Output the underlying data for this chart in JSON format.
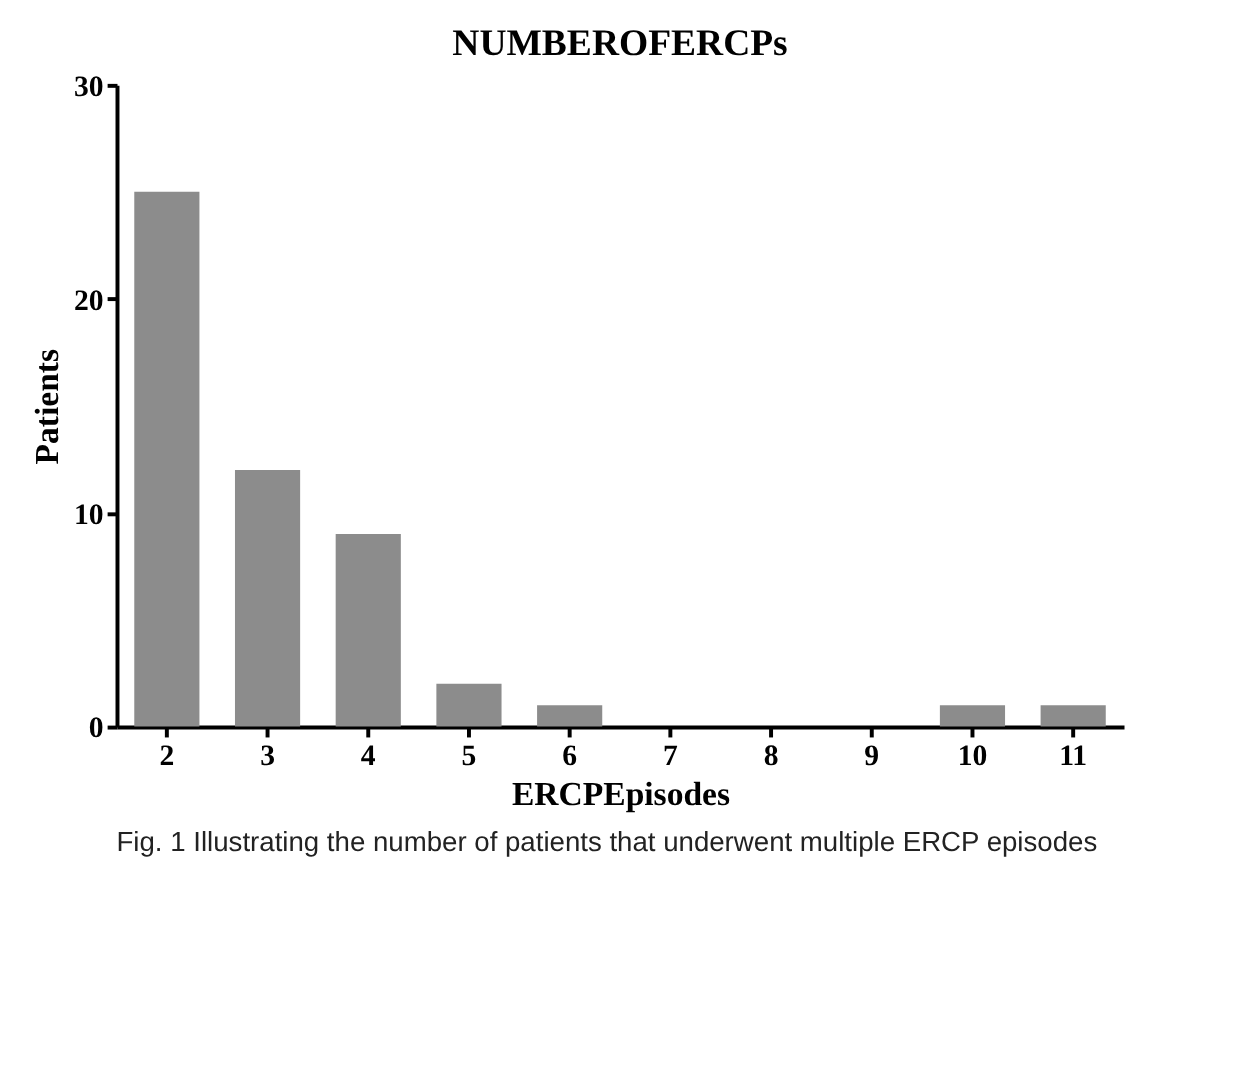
{
  "chart_data": {
    "type": "bar",
    "title": "NUMBEROFERCPs",
    "xlabel": "ERCPEpisodes",
    "ylabel": "Patients",
    "categories": [
      "2",
      "3",
      "4",
      "5",
      "6",
      "7",
      "8",
      "9",
      "10",
      "11"
    ],
    "values": [
      25,
      12,
      9,
      2,
      1,
      0,
      0,
      0,
      1,
      1
    ],
    "color": "#8c8c8c",
    "ylim": [
      0,
      30
    ],
    "yticks": [
      0,
      10,
      20,
      30
    ],
    "grid": false,
    "annotations": [
      "Fig. 1 Illustrating the number of patients that underwent multiple ERCP episodes"
    ]
  }
}
